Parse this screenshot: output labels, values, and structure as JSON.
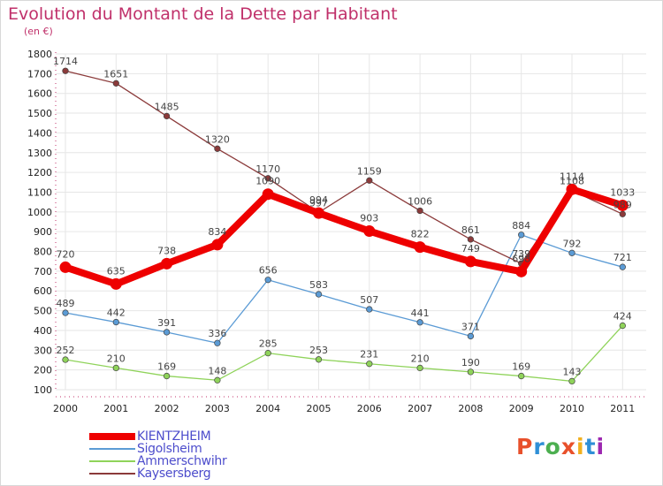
{
  "header": {
    "title": "Evolution du Montant de la Dette par Habitant",
    "unit": "(en €)"
  },
  "logo": {
    "text": "Proxiti",
    "colors": [
      "#e8502b",
      "#2f8fd6",
      "#4caf50",
      "#e8502b",
      "#f2b01e",
      "#2f8fd6",
      "#9c27b0"
    ]
  },
  "chart_data": {
    "type": "line",
    "title": "Evolution du Montant de la Dette par Habitant",
    "subtitle": "(en €)",
    "xlabel": "",
    "ylabel": "",
    "categories": [
      "2000",
      "2001",
      "2002",
      "2003",
      "2004",
      "2005",
      "2006",
      "2007",
      "2008",
      "2009",
      "2010",
      "2011"
    ],
    "ylim": [
      100,
      1800
    ],
    "yticks": [
      100,
      200,
      300,
      400,
      500,
      600,
      700,
      800,
      900,
      1000,
      1100,
      1200,
      1300,
      1400,
      1500,
      1600,
      1700,
      1800
    ],
    "grid": true,
    "legend_position": "bottom-left",
    "series": [
      {
        "name": "KIENTZHEIM",
        "color": "#ee0000",
        "values": [
          720,
          635,
          738,
          834,
          1090,
          994,
          903,
          822,
          749,
          698,
          1114,
          1033
        ]
      },
      {
        "name": "Sigolsheim",
        "color": "#5b9bd5",
        "values": [
          489,
          442,
          391,
          336,
          656,
          583,
          507,
          441,
          371,
          884,
          792,
          721
        ]
      },
      {
        "name": "Ammerschwihr",
        "color": "#8fd35a",
        "values": [
          252,
          210,
          169,
          148,
          285,
          253,
          231,
          210,
          190,
          169,
          143,
          424
        ]
      },
      {
        "name": "Kaysersberg",
        "color": "#8b3a3a",
        "values": [
          1714,
          1651,
          1485,
          1320,
          1170,
          997,
          1159,
          1006,
          861,
          739,
          1108,
          989
        ]
      }
    ]
  }
}
